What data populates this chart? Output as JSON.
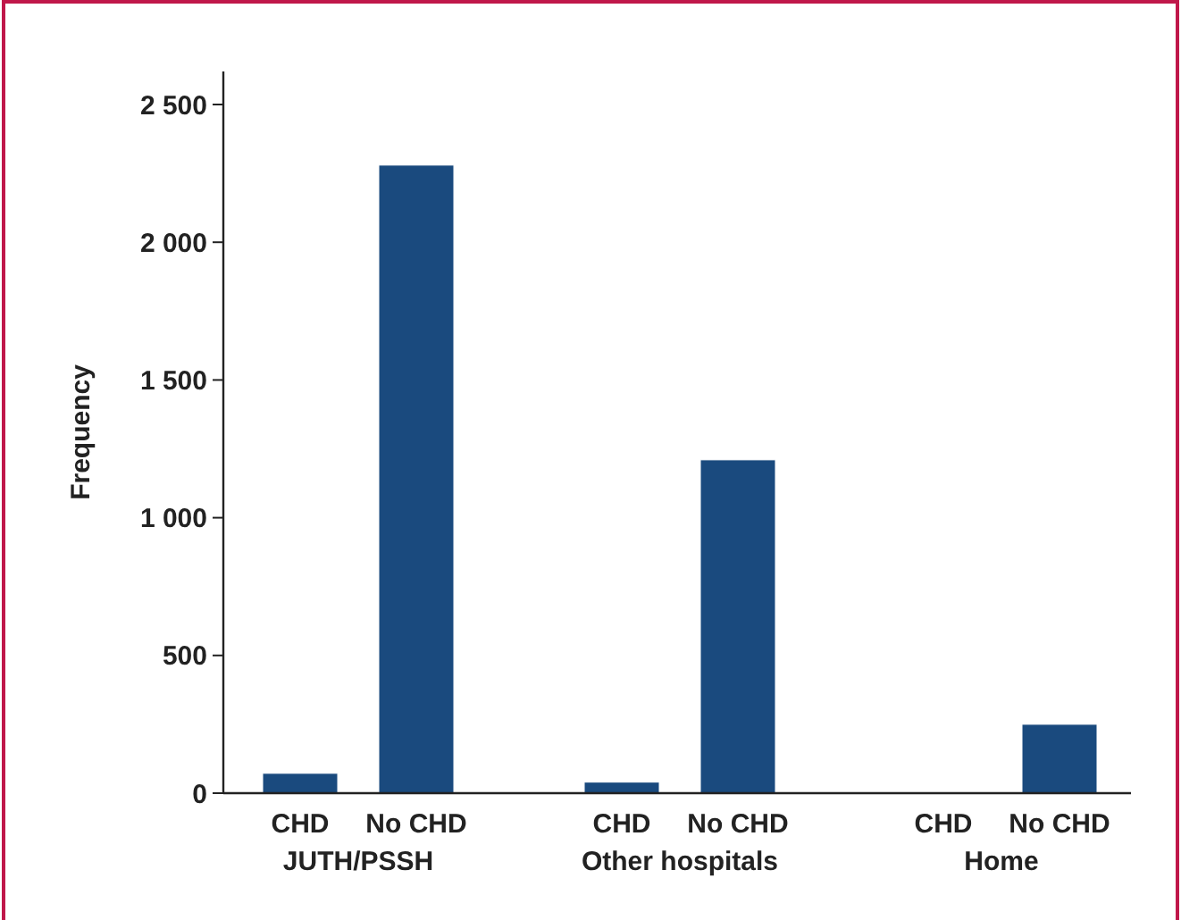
{
  "chart_data": {
    "type": "bar",
    "ylabel": "Frequency",
    "categories": [
      "CHD",
      "No CHD",
      "CHD",
      "No CHD",
      "CHD",
      "No CHD"
    ],
    "values": [
      72,
      2280,
      40,
      1210,
      0,
      250
    ],
    "color": "#1a4a7e",
    "ylim": [
      0,
      2620
    ],
    "yticks": [
      0,
      500,
      {
        "value": 1000,
        "label": "1 000"
      },
      {
        "value": 1500,
        "label": "1 500"
      },
      {
        "value": 2000,
        "label": "2 000"
      },
      {
        "value": 2500,
        "label": "2 500"
      }
    ],
    "annotations": [
      "JUTH/PSSH",
      "Other hospitals",
      "Home"
    ],
    "grid": false
  }
}
